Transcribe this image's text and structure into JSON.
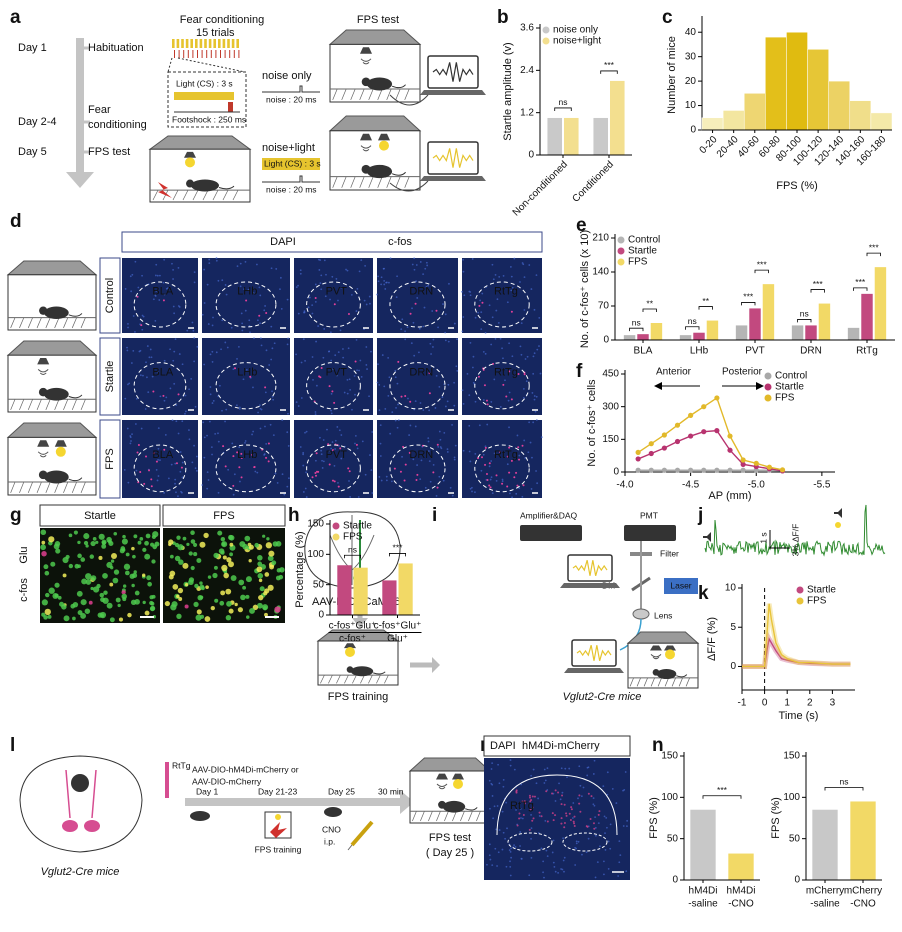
{
  "panel_labels": [
    "a",
    "b",
    "c",
    "d",
    "e",
    "f",
    "g",
    "h",
    "i",
    "j",
    "k",
    "l",
    "m",
    "n"
  ],
  "panel_a": {
    "heading_left": "Fear conditioning",
    "heading_right": "FPS test",
    "days": [
      "Day 1",
      "Day 2-4",
      "Day 5"
    ],
    "stages": [
      [
        "Habituation"
      ],
      [
        "Fear",
        "conditioning"
      ],
      [
        "FPS test"
      ]
    ],
    "trials": "15 trials",
    "light_cs": "Light (CS) : 3 s",
    "footshock": "Footshock : 250 ms",
    "noise_only": "noise only",
    "noise_pulse": "noise : 20 ms",
    "noise_light": "noise+light"
  },
  "panel_d": {
    "stains": [
      "DAPI",
      "c-fos"
    ],
    "groups": [
      "Control",
      "Startle",
      "FPS"
    ],
    "regions": [
      "BLA",
      "LHb",
      "PVT",
      "DRN",
      "RtTg"
    ]
  },
  "panel_g": {
    "groups": [
      "Startle",
      "FPS"
    ],
    "stains": [
      "c-fos",
      "Glu"
    ]
  },
  "panel_i": {
    "virus_prefix": "AAV-DIO-",
    "virus_name": "GCaMP6m",
    "amplifier": "Amplifier&DAQ",
    "pmt": "PMT",
    "filter": "Filter",
    "dm": "DM",
    "laser": "Laser",
    "lens": "Lens",
    "training": "FPS training",
    "mice": "Vglut2-Cre mice"
  },
  "panel_j": {
    "time_scale": "1 s",
    "signal_scale": "3% ΔF/F"
  },
  "panel_l": {
    "region": "RtTg",
    "virus": [
      "AAV-DIO-hM4Di-mCherry or",
      "AAV-DIO-mCherry"
    ],
    "mice": "Vglut2-Cre mice",
    "day1": "Day 1",
    "training_days": "Day 21-23",
    "test_day": "Day 25",
    "delay": "30 min",
    "training": "FPS training",
    "drug": [
      "CNO",
      "i.p."
    ],
    "test": [
      "FPS test",
      "( Day 25 )"
    ]
  },
  "panel_m": {
    "stains": [
      "DAPI",
      "hM4Di-mCherry"
    ],
    "region": "RtTg"
  },
  "chart_data": [
    {
      "type": "bar",
      "ylabel": "Startle amplitude (v)",
      "categories": [
        "Non-conditioned",
        "Conditioned"
      ],
      "series": [
        {
          "name": "noise only",
          "color": "#c9c9c9",
          "values": [
            1.05,
            1.05
          ]
        },
        {
          "name": "noise+light",
          "color": "#f3df8f",
          "values": [
            1.05,
            2.1
          ]
        }
      ],
      "ylim": [
        0,
        3.6
      ],
      "yticks": [
        0,
        1.2,
        2.4,
        3.6
      ],
      "significance": [
        "ns",
        "***"
      ],
      "legend": "upper left"
    },
    {
      "type": "bar",
      "ylabel": "Number of mice",
      "xlabel": "FPS (%)",
      "categories": [
        "0-20",
        "20-40",
        "40-60",
        "60-80",
        "80-100",
        "100-120",
        "120-140",
        "140-160",
        "160-180"
      ],
      "values": [
        5,
        8,
        15,
        38,
        40,
        33,
        20,
        12,
        7
      ],
      "colors": [
        "#f6eebb",
        "#f3e6a0",
        "#eed672",
        "#e3bf1a",
        "#e0bb10",
        "#e6c636",
        "#ecd264",
        "#f0de8a",
        "#f4e9a8"
      ],
      "ylim": [
        0,
        45
      ],
      "yticks": [
        0,
        10,
        20,
        30,
        40
      ]
    },
    {
      "type": "bar",
      "ylabel": "No. of c-fos⁺ cells (x 10)",
      "categories": [
        "BLA",
        "LHb",
        "PVT",
        "DRN",
        "RtTg"
      ],
      "series": [
        {
          "name": "Control",
          "color": "#b5b5b5",
          "values": [
            10,
            10,
            30,
            30,
            25
          ]
        },
        {
          "name": "Startle",
          "color": "#c2497f",
          "values": [
            12,
            15,
            65,
            30,
            95
          ]
        },
        {
          "name": "FPS",
          "color": "#f2d966",
          "values": [
            35,
            40,
            115,
            75,
            150
          ]
        }
      ],
      "ylim": [
        0,
        210
      ],
      "yticks": [
        0,
        70,
        140,
        210
      ],
      "significance": [
        [
          "ns",
          "**"
        ],
        [
          "ns",
          "**"
        ],
        [
          "***",
          "***"
        ],
        [
          "ns",
          "***"
        ],
        [
          "***",
          "***"
        ]
      ],
      "legend": "upper left"
    },
    {
      "type": "line",
      "ylabel": "No. of c-fos⁺ cells",
      "xlabel": "AP (mm)",
      "x": [
        -4.1,
        -4.2,
        -4.3,
        -4.4,
        -4.5,
        -4.6,
        -4.7,
        -4.8,
        -4.9,
        -5.0,
        -5.1,
        -5.2
      ],
      "series": [
        {
          "name": "Control",
          "color": "#a8a8a8",
          "values": [
            8,
            8,
            8,
            8,
            8,
            8,
            8,
            8,
            8,
            8,
            8,
            5
          ]
        },
        {
          "name": "Startle",
          "color": "#b8336f",
          "values": [
            60,
            85,
            110,
            140,
            165,
            185,
            190,
            100,
            35,
            25,
            15,
            5
          ]
        },
        {
          "name": "FPS",
          "color": "#e2b92a",
          "values": [
            90,
            130,
            170,
            215,
            260,
            300,
            340,
            165,
            55,
            40,
            22,
            10
          ]
        }
      ],
      "xlim": [
        -4.0,
        -5.6
      ],
      "xticks": [
        {
          "value": -4,
          "label": "-4.0"
        },
        -4.5,
        {
          "value": -5,
          "label": "-5.0"
        },
        -5.5
      ],
      "ylim": [
        0,
        450
      ],
      "yticks": [
        0,
        150,
        300,
        450
      ],
      "annotations": [
        "Anterior",
        "Posterior"
      ],
      "legend": "upper right"
    },
    {
      "type": "bar",
      "ylabel": "Percentage (%)",
      "category_style": "fraction",
      "categories": [
        [
          "c-fos⁺Glu⁺",
          "c-fos⁺"
        ],
        [
          "c-fos⁺Glu⁺",
          "Glu⁺"
        ]
      ],
      "series": [
        {
          "name": "Startle",
          "color": "#c2497f",
          "values": [
            82,
            57
          ]
        },
        {
          "name": "FPS",
          "color": "#f2d966",
          "values": [
            78,
            85
          ]
        }
      ],
      "ylim": [
        0,
        150
      ],
      "yticks": [
        0,
        50,
        100,
        150
      ],
      "significance": [
        "ns",
        "***"
      ],
      "legend": "upper left"
    },
    {
      "type": "line",
      "ylabel": "ΔF/F (%)",
      "xlabel": "Time (s)",
      "x": [
        -1,
        -0.5,
        0,
        0.1,
        0.2,
        0.3,
        0.5,
        0.75,
        1,
        1.5,
        2,
        3,
        3.8
      ],
      "series": [
        {
          "name": "Startle",
          "color": "#c2497f",
          "values": [
            0,
            0,
            0,
            2,
            3.5,
            3,
            2,
            1,
            0.8,
            0.5,
            0.4,
            0.3,
            0.3
          ]
        },
        {
          "name": "FPS",
          "color": "#e8c43a",
          "values": [
            0,
            0,
            0,
            4,
            8,
            6,
            3,
            1.5,
            1,
            0.5,
            0.5,
            0.3,
            0.3
          ]
        }
      ],
      "xlim": [
        -1,
        4
      ],
      "xticks": [
        -1,
        0,
        1,
        2,
        3
      ],
      "ylim": [
        -3,
        10
      ],
      "yticks": [
        0,
        5,
        10
      ],
      "legend": "upper right"
    },
    {
      "type": "bar",
      "ylabel": "FPS (%)",
      "categories": [
        [
          "hM4Di",
          "-saline"
        ],
        [
          "hM4Di",
          "-CNO"
        ]
      ],
      "values": [
        85,
        32
      ],
      "colors": [
        "#c8c8c8",
        "#f2d966"
      ],
      "ylim": [
        0,
        150
      ],
      "yticks": [
        0,
        50,
        100,
        150
      ],
      "comparison": "***"
    },
    {
      "type": "bar",
      "ylabel": "FPS (%)",
      "categories": [
        [
          "mCherry",
          "-saline"
        ],
        [
          "mCherry",
          "-CNO"
        ]
      ],
      "values": [
        85,
        95
      ],
      "colors": [
        "#c8c8c8",
        "#f2d966"
      ],
      "ylim": [
        0,
        150
      ],
      "yticks": [
        0,
        50,
        100,
        150
      ],
      "comparison": "ns"
    }
  ]
}
